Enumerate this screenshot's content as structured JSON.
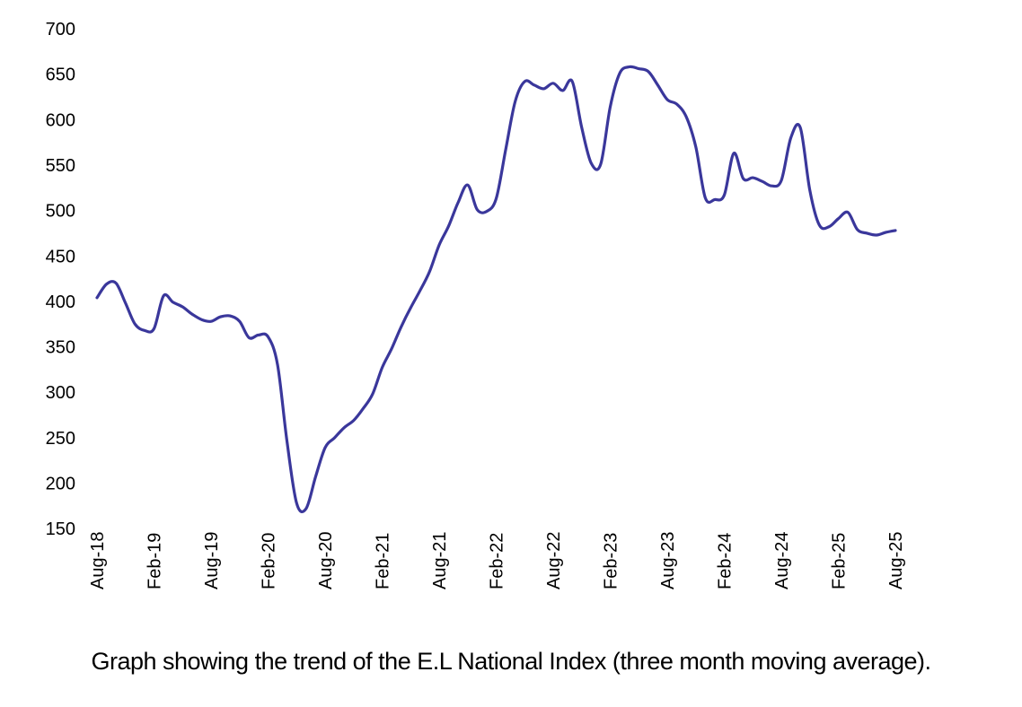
{
  "chart_data": {
    "type": "line",
    "title": "",
    "caption": "Graph showing the trend of the E.L National Index (three month moving average).",
    "legend": false,
    "grid": false,
    "line_color": "#3A379B",
    "axis_text_color": "#000000",
    "ylim": [
      150,
      700
    ],
    "y_tick_step": 50,
    "y_tick_labels": [
      "700",
      "650",
      "600",
      "550",
      "500",
      "450",
      "400",
      "350",
      "300",
      "250",
      "200",
      "150"
    ],
    "x_tick_labels": [
      "Aug-18",
      "Feb-19",
      "Aug-19",
      "Feb-20",
      "Aug-20",
      "Feb-21",
      "Aug-21",
      "Feb-22",
      "Aug-22",
      "Feb-23",
      "Aug-23",
      "Feb-24",
      "Aug-24",
      "Feb-25",
      "Aug-25"
    ],
    "x_tick_every": 6,
    "series": [
      {
        "name": "E.L National Index (three month moving average)",
        "x": [
          "Aug-18",
          "Sep-18",
          "Oct-18",
          "Nov-18",
          "Dec-18",
          "Jan-19",
          "Feb-19",
          "Mar-19",
          "Apr-19",
          "May-19",
          "Jun-19",
          "Jul-19",
          "Aug-19",
          "Sep-19",
          "Oct-19",
          "Nov-19",
          "Dec-19",
          "Jan-20",
          "Feb-20",
          "Mar-20",
          "Apr-20",
          "May-20",
          "Jun-20",
          "Jul-20",
          "Aug-20",
          "Sep-20",
          "Oct-20",
          "Nov-20",
          "Dec-20",
          "Jan-21",
          "Feb-21",
          "Mar-21",
          "Apr-21",
          "May-21",
          "Jun-21",
          "Jul-21",
          "Aug-21",
          "Sep-21",
          "Oct-21",
          "Nov-21",
          "Dec-21",
          "Jan-22",
          "Feb-22",
          "Mar-22",
          "Apr-22",
          "May-22",
          "Jun-22",
          "Jul-22",
          "Aug-22",
          "Sep-22",
          "Oct-22",
          "Nov-22",
          "Dec-22",
          "Jan-23",
          "Feb-23",
          "Mar-23",
          "Apr-23",
          "May-23",
          "Jun-23",
          "Jul-23",
          "Aug-23",
          "Sep-23",
          "Oct-23",
          "Nov-23",
          "Dec-23",
          "Jan-24",
          "Feb-24",
          "Mar-24",
          "Apr-24",
          "May-24",
          "Jun-24",
          "Jul-24",
          "Aug-24",
          "Sep-24",
          "Oct-24",
          "Nov-24",
          "Dec-24",
          "Jan-25",
          "Feb-25",
          "Mar-25",
          "Apr-25",
          "May-25",
          "Jun-25",
          "Jul-25",
          "Aug-25"
        ],
        "values": [
          404,
          419,
          420,
          398,
          375,
          368,
          370,
          406,
          399,
          394,
          386,
          380,
          378,
          383,
          384,
          378,
          360,
          363,
          361,
          330,
          245,
          178,
          172,
          207,
          239,
          250,
          261,
          269,
          282,
          298,
          327,
          348,
          372,
          393,
          412,
          433,
          462,
          483,
          509,
          528,
          501,
          499,
          513,
          567,
          620,
          642,
          638,
          634,
          640,
          632,
          642,
          591,
          552,
          551,
          614,
          651,
          658,
          656,
          653,
          638,
          622,
          617,
          603,
          570,
          514,
          512,
          517,
          563,
          535,
          536,
          532,
          527,
          533,
          580,
          591,
          522,
          484,
          482,
          491,
          498,
          479,
          475,
          473,
          476,
          478
        ]
      }
    ]
  }
}
